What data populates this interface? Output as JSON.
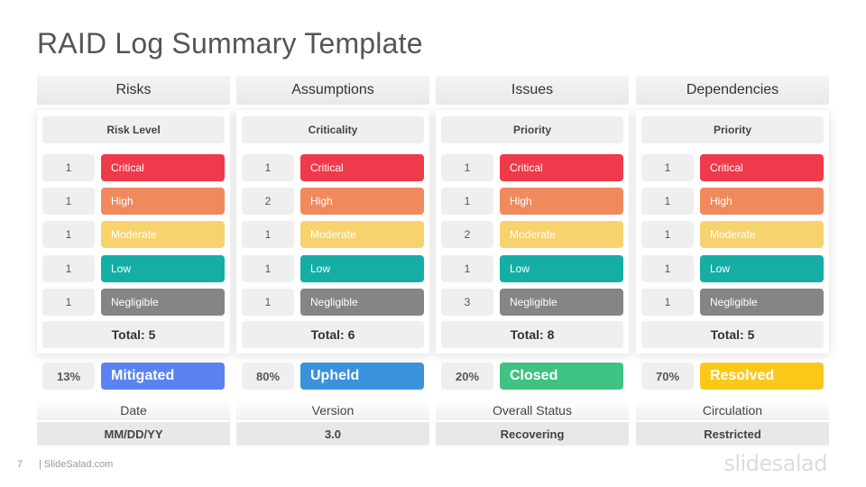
{
  "title": "RAID Log Summary Template",
  "columns": [
    {
      "header": "Risks",
      "subheader": "Risk Level",
      "rows": [
        {
          "count": "1",
          "label": "Critical",
          "color": "#f0394a"
        },
        {
          "count": "1",
          "label": "High",
          "color": "#f08a5d"
        },
        {
          "count": "1",
          "label": "Moderate",
          "color": "#f7d36e"
        },
        {
          "count": "1",
          "label": "Low",
          "color": "#14aea5"
        },
        {
          "count": "1",
          "label": "Negligible",
          "color": "#858585"
        }
      ],
      "total": "Total: 5",
      "percent": "13%",
      "status": "Mitigated",
      "status_color": "#5a82f0",
      "meta_label": "Date",
      "meta_value": "MM/DD/YY"
    },
    {
      "header": "Assumptions",
      "subheader": "Criticality",
      "rows": [
        {
          "count": "1",
          "label": "Critical",
          "color": "#f0394a"
        },
        {
          "count": "2",
          "label": "High",
          "color": "#f08a5d"
        },
        {
          "count": "1",
          "label": "Moderate",
          "color": "#f7d36e"
        },
        {
          "count": "1",
          "label": "Low",
          "color": "#14aea5"
        },
        {
          "count": "1",
          "label": "Negligible",
          "color": "#858585"
        }
      ],
      "total": "Total: 6",
      "percent": "80%",
      "status": "Upheld",
      "status_color": "#3a92dc",
      "meta_label": "Version",
      "meta_value": "3.0"
    },
    {
      "header": "Issues",
      "subheader": "Priority",
      "rows": [
        {
          "count": "1",
          "label": "Critical",
          "color": "#f0394a"
        },
        {
          "count": "1",
          "label": "High",
          "color": "#f08a5d"
        },
        {
          "count": "2",
          "label": "Moderate",
          "color": "#f7d36e"
        },
        {
          "count": "1",
          "label": "Low",
          "color": "#14aea5"
        },
        {
          "count": "3",
          "label": "Negligible",
          "color": "#858585"
        }
      ],
      "total": "Total: 8",
      "percent": "20%",
      "status": "Closed",
      "status_color": "#3fc383",
      "meta_label": "Overall Status",
      "meta_value": "Recovering"
    },
    {
      "header": "Dependencies",
      "subheader": "Priority",
      "rows": [
        {
          "count": "1",
          "label": "Critical",
          "color": "#f0394a"
        },
        {
          "count": "1",
          "label": "High",
          "color": "#f08a5d"
        },
        {
          "count": "1",
          "label": "Moderate",
          "color": "#f7d36e"
        },
        {
          "count": "1",
          "label": "Low",
          "color": "#14aea5"
        },
        {
          "count": "1",
          "label": "Negligible",
          "color": "#858585"
        }
      ],
      "total": "Total: 5",
      "percent": "70%",
      "status": "Resolved",
      "status_color": "#fbc81a",
      "meta_label": "Circulation",
      "meta_value": "Restricted"
    }
  ],
  "footer": {
    "page_number": "7",
    "site": "| SlideSalad.com",
    "brand": "slidesalad"
  }
}
